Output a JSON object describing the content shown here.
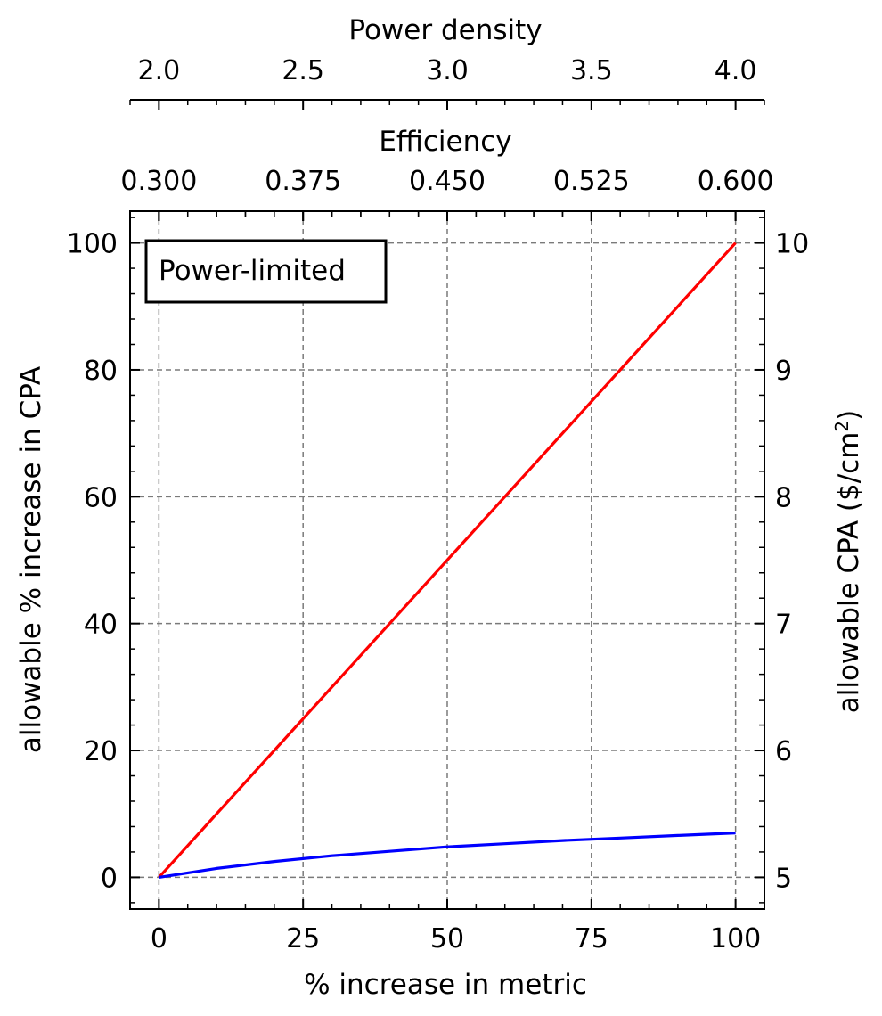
{
  "chart_data": {
    "type": "line",
    "annotation": "Power-limited",
    "xlabel": "% increase in metric",
    "xlim": [
      -5,
      105
    ],
    "xticks": [
      0,
      25,
      50,
      75,
      100
    ],
    "ylabel": "allowable % increase in CPA",
    "ylim": [
      -5,
      105
    ],
    "yticks": [
      0,
      20,
      40,
      60,
      80,
      100
    ],
    "y2label_main": "allowable CPA ($/cm",
    "y2label_sup": "2",
    "y2label_end": ")",
    "y2ticks": [
      5,
      6,
      7,
      8,
      9,
      10
    ],
    "top_axes": [
      {
        "label": "Efficiency",
        "color": "#0000ff",
        "tick_labels": [
          "0.300",
          "0.375",
          "0.450",
          "0.525",
          "0.600"
        ]
      },
      {
        "label": "Power density",
        "color": "#ff0000",
        "tick_labels": [
          "2.0",
          "2.5",
          "3.0",
          "3.5",
          "4.0"
        ]
      }
    ],
    "grid": true,
    "series": [
      {
        "color": "#ff0000",
        "x": [
          0,
          100
        ],
        "y": [
          0,
          100
        ]
      },
      {
        "color": "#0000ff",
        "x": [
          0,
          5,
          10,
          20,
          30,
          40,
          50,
          60,
          70,
          80,
          90,
          100
        ],
        "y": [
          0,
          0.7,
          1.4,
          2.5,
          3.4,
          4.1,
          4.8,
          5.3,
          5.8,
          6.2,
          6.6,
          7.0
        ]
      }
    ]
  }
}
